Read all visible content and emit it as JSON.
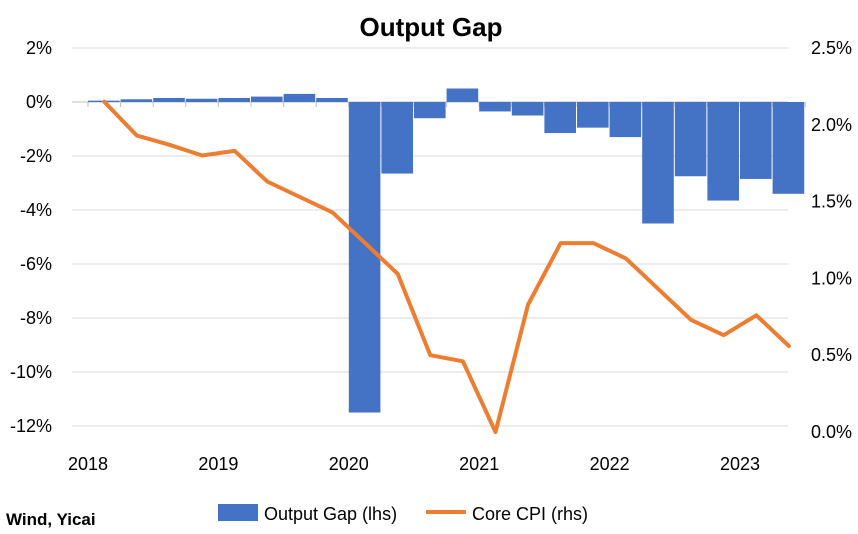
{
  "chart_data": {
    "type": "bar+line",
    "title": "Output Gap",
    "source": "Wind, Yicai",
    "x_labels": [
      "2018",
      "2019",
      "2020",
      "2021",
      "2022",
      "2023"
    ],
    "left_axis": {
      "ticks": [
        "2%",
        "0%",
        "-2%",
        "-4%",
        "-6%",
        "-8%",
        "-10%",
        "-12%"
      ],
      "tick_values": [
        2,
        0,
        -2,
        -4,
        -6,
        -8,
        -10,
        -12
      ],
      "ylim": [
        -12,
        2
      ]
    },
    "right_axis": {
      "ticks": [
        "2.5%",
        "2.0%",
        "1.5%",
        "1.0%",
        "0.5%",
        "0.0%"
      ],
      "tick_values": [
        2.5,
        2.0,
        1.5,
        1.0,
        0.5,
        0.0
      ],
      "ylim": [
        0,
        2.5
      ]
    },
    "x_range": [
      2018,
      2023.4
    ],
    "grid": true,
    "legend_position": "bottom",
    "series": [
      {
        "name": "Output Gap (lhs)",
        "type": "bar",
        "axis": "left",
        "color": "#4472C4",
        "x": [
          2018.0,
          2018.25,
          2018.5,
          2018.75,
          2019.0,
          2019.25,
          2019.5,
          2019.75,
          2020.0,
          2020.25,
          2020.5,
          2020.75,
          2021.0,
          2021.25,
          2021.5,
          2021.75,
          2022.0,
          2022.25,
          2022.5,
          2022.75,
          2023.0,
          2023.25
        ],
        "values": [
          0.05,
          0.1,
          0.15,
          0.12,
          0.15,
          0.2,
          0.3,
          0.15,
          -11.5,
          -2.65,
          -0.6,
          0.5,
          -0.35,
          -0.5,
          -1.15,
          -0.95,
          -1.3,
          -4.5,
          -2.75,
          -3.65,
          -2.85,
          -3.4
        ]
      },
      {
        "name": "Core CPI (rhs)",
        "type": "line",
        "axis": "right",
        "color": "#ED7D31",
        "x": [
          2018.0,
          2018.25,
          2018.5,
          2018.75,
          2019.0,
          2019.25,
          2019.5,
          2019.75,
          2020.0,
          2020.25,
          2020.5,
          2020.75,
          2021.0,
          2021.25,
          2021.5,
          2021.75,
          2022.0,
          2022.25,
          2022.5,
          2022.75,
          2023.0,
          2023.25
        ],
        "values": [
          2.15,
          1.93,
          1.87,
          1.8,
          1.83,
          1.63,
          1.53,
          1.43,
          1.23,
          1.03,
          0.5,
          0.46,
          0.0,
          0.83,
          1.23,
          1.23,
          1.13,
          0.93,
          0.73,
          0.63,
          0.76,
          0.56
        ]
      }
    ]
  }
}
